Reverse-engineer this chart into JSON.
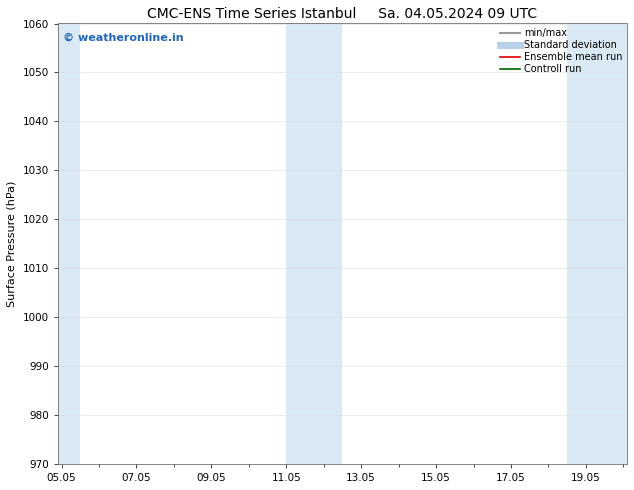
{
  "title_left": "CMC-ENS Time Series Istanbul",
  "title_right": "Sa. 04.05.2024 09 UTC",
  "ylabel": "Surface Pressure (hPa)",
  "ylim": [
    970,
    1060
  ],
  "yticks": [
    970,
    980,
    990,
    1000,
    1010,
    1020,
    1030,
    1040,
    1050,
    1060
  ],
  "xtick_labels": [
    "05.05",
    "07.05",
    "09.05",
    "11.05",
    "13.05",
    "15.05",
    "17.05",
    "19.05"
  ],
  "xtick_positions": [
    0,
    2,
    4,
    6,
    8,
    10,
    12,
    14
  ],
  "xlim": [
    -0.1,
    15.1
  ],
  "shaded_bands": [
    {
      "x_start": -0.1,
      "x_end": 0.5
    },
    {
      "x_start": 6.0,
      "x_end": 7.5
    },
    {
      "x_start": 13.5,
      "x_end": 15.1
    }
  ],
  "shaded_color": "#daeaf5",
  "background_color": "#ffffff",
  "watermark_text": "© weatheronline.in",
  "watermark_color": "#2266bb",
  "legend_items": [
    {
      "label": "min/max",
      "color": "#999999",
      "lw": 1.5
    },
    {
      "label": "Standard deviation",
      "color": "#b8d0e8",
      "lw": 5
    },
    {
      "label": "Ensemble mean run",
      "color": "#dd0000",
      "lw": 1.2
    },
    {
      "label": "Controll run",
      "color": "#006600",
      "lw": 1.2
    }
  ],
  "title_fontsize": 10,
  "axis_label_fontsize": 8,
  "tick_fontsize": 7.5,
  "legend_fontsize": 7,
  "watermark_fontsize": 8
}
